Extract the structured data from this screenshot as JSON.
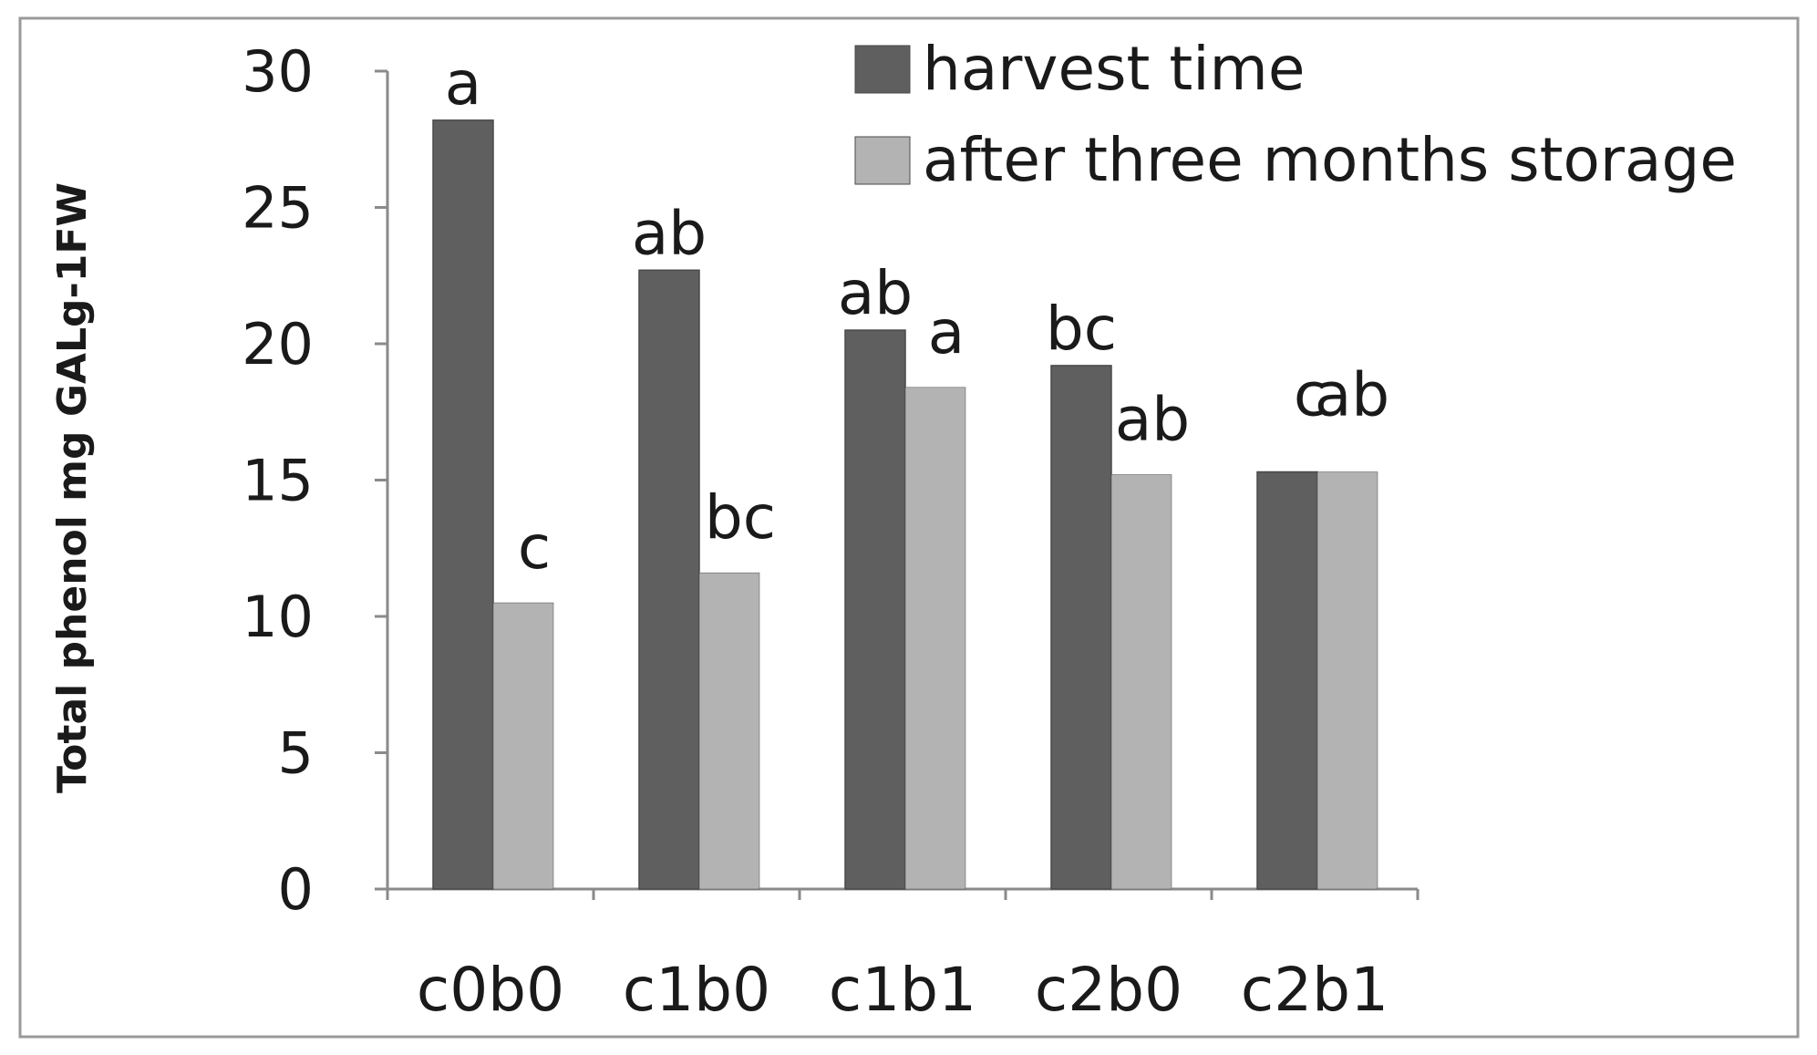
{
  "chart_data": {
    "type": "bar",
    "title": "",
    "xlabel": "",
    "ylabel": "Total phenol mg GALg-1FW",
    "ylim": [
      0,
      30
    ],
    "yticks": [
      0,
      5,
      10,
      15,
      20,
      25,
      30
    ],
    "categories": [
      "c0b0",
      "c1b0",
      "c1b1",
      "c2b0",
      "c2b1"
    ],
    "legend_position": "top-right",
    "grid": false,
    "series": [
      {
        "name": "harvest time",
        "color": "#5f5f5f",
        "values": [
          28.2,
          22.7,
          20.5,
          19.2,
          15.3
        ],
        "labels": [
          "a",
          "ab",
          "ab",
          "bc",
          "c"
        ]
      },
      {
        "name": "after three months storage",
        "color": "#b3b3b3",
        "values": [
          10.5,
          11.6,
          18.4,
          15.2,
          15.3
        ],
        "labels": [
          "c",
          "bc",
          "a",
          "ab",
          "ab"
        ]
      }
    ]
  }
}
